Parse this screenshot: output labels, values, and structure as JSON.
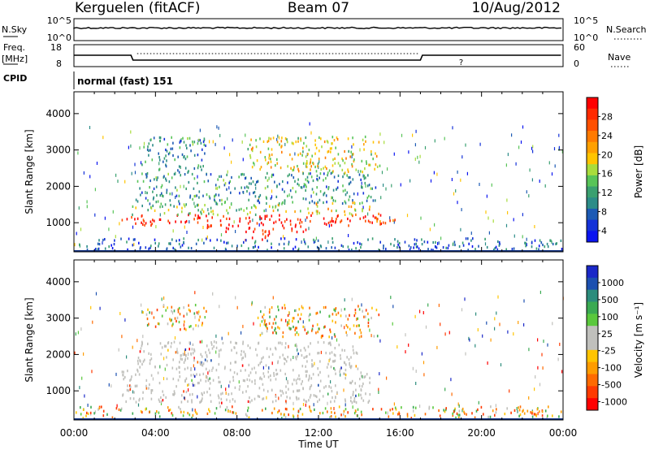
{
  "header": {
    "station": "Kerguelen (fitACF)",
    "beam": "Beam 07",
    "date": "10/Aug/2012"
  },
  "noise_panel": {
    "left_label": "N.Sky",
    "left_ticks": [
      "10^5",
      "10^0"
    ],
    "right_label": "N.Search",
    "right_ticks": [
      "10^5",
      "10^0"
    ]
  },
  "freq_panel": {
    "left_label_1": "Freq.",
    "left_label_2": "[MHz]",
    "left_ticks": [
      "18",
      "8"
    ],
    "right_label": "Nave",
    "right_ticks": [
      "60",
      "0"
    ],
    "marker": "?"
  },
  "cpid_panel": {
    "label": "CPID",
    "program": "normal (fast) 151"
  },
  "x_axis": {
    "title": "Time UT",
    "ticks": [
      "00:00",
      "04:00",
      "08:00",
      "12:00",
      "16:00",
      "20:00",
      "00:00"
    ]
  },
  "colors": {
    "ground_scatter": "#c0c0bc",
    "axis": "#000000",
    "baseline": "#103080"
  },
  "chart_data": [
    {
      "type": "heatmap",
      "name": "power",
      "ylabel": "Slant Range [km]",
      "yticks": [
        "1000",
        "2000",
        "3000",
        "4000"
      ],
      "ylim": [
        200,
        4600
      ],
      "xlim_hours": [
        0,
        24
      ],
      "colorbar": {
        "label": "Power [dB]",
        "ticks": [
          "28",
          "24",
          "20",
          "16",
          "12",
          "8",
          "4"
        ],
        "colors": [
          "#ff0000",
          "#ff2a00",
          "#ff5000",
          "#ff7a00",
          "#ffa000",
          "#ffc400",
          "#a8dc3c",
          "#58c458",
          "#3aa070",
          "#2c8c88",
          "#1c5ab4",
          "#1432d8",
          "#0a14f0"
        ]
      },
      "regions": [
        {
          "t0": 2.3,
          "t1": 15.4,
          "r0": 950,
          "r1": 1250,
          "level": 0.95
        },
        {
          "t0": 6.5,
          "t1": 11.5,
          "r0": 780,
          "r1": 1000,
          "level": 0.95
        },
        {
          "t0": 8.2,
          "t1": 9.6,
          "r0": 550,
          "r1": 800,
          "level": 0.9
        },
        {
          "t0": 2.8,
          "t1": 11.5,
          "r0": 1250,
          "r1": 1550,
          "level": 0.45
        },
        {
          "t0": 11.5,
          "t1": 14.5,
          "r0": 1250,
          "r1": 1600,
          "level": 0.6
        },
        {
          "t0": 3.0,
          "t1": 14.8,
          "r0": 1550,
          "r1": 2400,
          "level": 0.3
        },
        {
          "t0": 3.3,
          "t1": 6.5,
          "r0": 2400,
          "r1": 3400,
          "level": 0.3
        },
        {
          "t0": 8.5,
          "t1": 15.0,
          "r0": 2400,
          "r1": 3400,
          "level": 0.55
        },
        {
          "t0": 14.8,
          "t1": 15.8,
          "r0": 900,
          "r1": 1300,
          "level": 0.7
        },
        {
          "t0": 0,
          "t1": 24,
          "r0": 280,
          "r1": 600,
          "level": 0.2
        }
      ]
    },
    {
      "type": "heatmap",
      "name": "velocity",
      "ylabel": "Slant Range [km]",
      "yticks": [
        "1000",
        "2000",
        "3000",
        "4000"
      ],
      "ylim": [
        200,
        4600
      ],
      "xlim_hours": [
        0,
        24
      ],
      "colorbar": {
        "label": "Velocity [m s⁻¹]",
        "ticks": [
          "1000",
          "500",
          "100",
          "25",
          "-25",
          "-100",
          "-500",
          "-1000"
        ],
        "colors": [
          "#1a28c8",
          "#1c50b0",
          "#2c8c7c",
          "#3aaa52",
          "#5ac83c",
          "#c0c0bc",
          "#c0c0bc",
          "#ffc400",
          "#ff9c00",
          "#ff6a00",
          "#ff3a00",
          "#ff0000"
        ]
      },
      "regions": [
        {
          "t0": 2.3,
          "t1": 14.5,
          "r0": 700,
          "r1": 1600,
          "level": 0.5
        },
        {
          "t0": 3.0,
          "t1": 14.0,
          "r0": 1600,
          "r1": 2400,
          "level": 0.5
        },
        {
          "t0": 3.3,
          "t1": 6.5,
          "r0": 2700,
          "r1": 3400,
          "level": 0.9
        },
        {
          "t0": 9.0,
          "t1": 15.0,
          "r0": 2500,
          "r1": 3400,
          "level": 0.85
        },
        {
          "t0": 0,
          "t1": 24,
          "r0": 280,
          "r1": 600,
          "level": 0.75
        }
      ]
    }
  ]
}
